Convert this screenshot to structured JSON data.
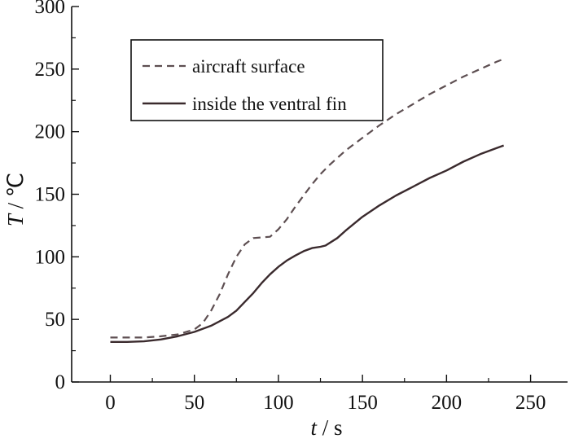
{
  "chart_data": {
    "type": "line",
    "title": "",
    "xlabel_var": "t",
    "xlabel_unit": " / s",
    "ylabel_var": "T",
    "ylabel_unit": " / ℃",
    "xlim": [
      -23,
      272
    ],
    "ylim": [
      0,
      300
    ],
    "x_ticks": [
      0,
      50,
      100,
      150,
      200,
      250
    ],
    "y_ticks": [
      0,
      50,
      100,
      150,
      200,
      250,
      300
    ],
    "legend_position": "top-left",
    "grid": false,
    "series": [
      {
        "name": "aircraft surface",
        "style": "dashed",
        "color": "#5e4f52",
        "points": [
          [
            0,
            35.5
          ],
          [
            10,
            35.5
          ],
          [
            20,
            35.5
          ],
          [
            30,
            36.5
          ],
          [
            40,
            38
          ],
          [
            50,
            42
          ],
          [
            55,
            47
          ],
          [
            60,
            57
          ],
          [
            65,
            70
          ],
          [
            70,
            86
          ],
          [
            75,
            100
          ],
          [
            80,
            110
          ],
          [
            85,
            115
          ],
          [
            90,
            115.5
          ],
          [
            95,
            116
          ],
          [
            100,
            122
          ],
          [
            105,
            130
          ],
          [
            110,
            140
          ],
          [
            115,
            149
          ],
          [
            120,
            158
          ],
          [
            125,
            166
          ],
          [
            130,
            173
          ],
          [
            140,
            185
          ],
          [
            150,
            195
          ],
          [
            160,
            205
          ],
          [
            170,
            214
          ],
          [
            180,
            222
          ],
          [
            190,
            230
          ],
          [
            200,
            237
          ],
          [
            210,
            244
          ],
          [
            220,
            250
          ],
          [
            230,
            256
          ],
          [
            234,
            258
          ]
        ]
      },
      {
        "name": "inside the ventral fin",
        "style": "solid",
        "color": "#3a2a2d",
        "points": [
          [
            0,
            32
          ],
          [
            10,
            32
          ],
          [
            20,
            32.5
          ],
          [
            30,
            34
          ],
          [
            40,
            36.5
          ],
          [
            50,
            40
          ],
          [
            60,
            45
          ],
          [
            70,
            52
          ],
          [
            75,
            57
          ],
          [
            80,
            64
          ],
          [
            85,
            71
          ],
          [
            90,
            79
          ],
          [
            95,
            86
          ],
          [
            100,
            92
          ],
          [
            105,
            97
          ],
          [
            110,
            101
          ],
          [
            115,
            104.5
          ],
          [
            120,
            107
          ],
          [
            125,
            108
          ],
          [
            128,
            109
          ],
          [
            135,
            115
          ],
          [
            140,
            121
          ],
          [
            150,
            132
          ],
          [
            160,
            141
          ],
          [
            170,
            149
          ],
          [
            180,
            156
          ],
          [
            190,
            163
          ],
          [
            200,
            169
          ],
          [
            210,
            176
          ],
          [
            220,
            182
          ],
          [
            230,
            187
          ],
          [
            234,
            189
          ]
        ]
      }
    ]
  }
}
